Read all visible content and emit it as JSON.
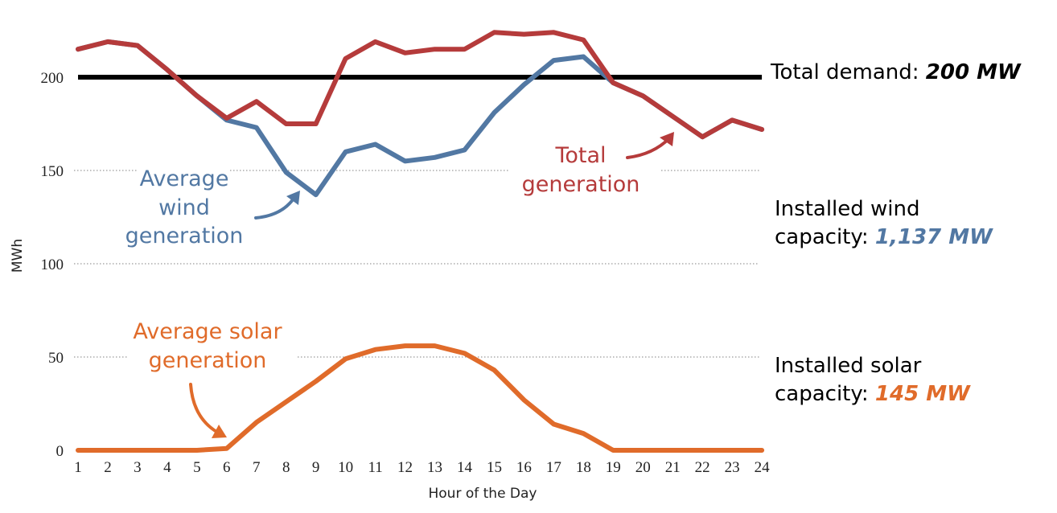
{
  "chart_data": {
    "type": "line",
    "title": "",
    "xlabel": "Hour of the Day",
    "ylabel": "MWh",
    "x": [
      1,
      2,
      3,
      4,
      5,
      6,
      7,
      8,
      9,
      10,
      11,
      12,
      13,
      14,
      15,
      16,
      17,
      18,
      19,
      20,
      21,
      22,
      23,
      24
    ],
    "ylim": [
      0,
      225
    ],
    "yticks": [
      0,
      50,
      100,
      150,
      200
    ],
    "grid": "dotted horizontal at 50, 100, 150",
    "series": [
      {
        "name": "Total generation",
        "color": "#B53B3B",
        "values": [
          215,
          219,
          217,
          204,
          190,
          178,
          187,
          175,
          175,
          210,
          219,
          213,
          215,
          215,
          224,
          223,
          224,
          220,
          197,
          190,
          179,
          168,
          177,
          172
        ]
      },
      {
        "name": "Average wind generation",
        "color": "#5278A3",
        "values": [
          215,
          219,
          217,
          204,
          190,
          177,
          173,
          149,
          137,
          160,
          164,
          155,
          157,
          161,
          181,
          196,
          209,
          211,
          197,
          190,
          179,
          168,
          177,
          172
        ]
      },
      {
        "name": "Average solar generation",
        "color": "#E06B2A",
        "values": [
          0,
          0,
          0,
          0,
          0,
          1,
          15,
          26,
          37,
          49,
          54,
          56,
          56,
          52,
          43,
          27,
          14,
          9,
          0,
          0,
          0,
          0,
          0,
          0
        ]
      }
    ],
    "reference_line": {
      "value": 200,
      "color": "#000000",
      "label_prefix": "Total demand: ",
      "label_value": "200 MW"
    }
  },
  "annotations": {
    "total": [
      "Total",
      "generation"
    ],
    "wind": [
      "Average",
      "wind",
      "generation"
    ],
    "solar": [
      "Average solar",
      "generation"
    ]
  },
  "side_labels": {
    "wind_line1": "Installed wind",
    "wind_line2_prefix": "capacity: ",
    "wind_value": "1,137 MW",
    "solar_line1": "Installed solar",
    "solar_line2_prefix": "capacity: ",
    "solar_value": "145 MW"
  },
  "colors": {
    "total": "#B53B3B",
    "wind": "#5278A3",
    "solar": "#E06B2A",
    "demand": "#000000"
  }
}
